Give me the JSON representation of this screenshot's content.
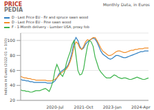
{
  "chart_data": {
    "type": "line",
    "title": "Monthly Data, in Euros",
    "annotations": [
      "PRICE",
      "PEDIA"
    ],
    "y_label": "Indices in Euros (2022-01 = 100)",
    "categories": [
      null,
      null,
      null,
      null,
      null,
      null,
      null,
      null,
      null,
      null,
      null,
      null,
      null,
      null,
      null,
      null,
      null,
      null,
      "2020-Jul",
      null,
      null,
      null,
      null,
      null,
      null,
      null,
      null,
      null,
      null,
      null,
      null,
      null,
      null,
      "2021-Oct",
      null,
      null,
      null,
      null,
      null,
      null,
      null,
      null,
      null,
      null,
      null,
      null,
      null,
      null,
      "2023-Jan",
      null,
      null,
      null,
      null,
      null,
      null,
      null,
      null,
      null,
      null,
      null,
      null,
      null,
      null,
      "2024-Apr",
      null,
      null,
      null,
      null
    ],
    "series": [
      {
        "name": "D - Last Price EU - Fir and spruce sawn wood",
        "color": "#2f7fc1",
        "values": [
          48,
          47,
          47,
          46,
          46,
          45,
          45,
          44,
          44,
          44,
          44,
          44,
          44,
          44,
          43,
          43,
          43,
          44,
          46,
          50,
          55,
          58,
          60,
          62,
          64,
          68,
          75,
          85,
          98,
          104,
          100,
          92,
          88,
          90,
          95,
          98,
          100,
          102,
          103,
          102,
          98,
          92,
          86,
          82,
          80,
          78,
          76,
          75,
          76,
          78,
          80,
          80,
          79,
          78,
          77,
          77,
          78,
          79,
          80,
          81,
          82,
          83,
          84,
          85,
          85,
          86,
          86,
          86
        ]
      },
      {
        "name": "D - Last Price EU - Pine sawn wood",
        "color": "#f28e2b",
        "values": [
          52,
          51,
          50,
          50,
          49,
          49,
          48,
          48,
          47,
          47,
          47,
          47,
          47,
          47,
          46,
          46,
          46,
          47,
          48,
          50,
          53,
          56,
          58,
          60,
          62,
          66,
          72,
          80,
          92,
          98,
          96,
          90,
          88,
          92,
          98,
          101,
          100,
          102,
          104,
          104,
          100,
          95,
          90,
          86,
          84,
          82,
          80,
          80,
          81,
          83,
          85,
          86,
          86,
          85,
          84,
          84,
          85,
          86,
          87,
          87,
          88,
          88,
          89,
          89,
          89,
          90,
          90,
          90
        ]
      },
      {
        "name": "F - 1-Month delivery - Lumber USA, proxy fob",
        "color": "#3cb44b",
        "values": [
          34,
          33,
          33,
          32,
          32,
          31,
          31,
          32,
          33,
          33,
          33,
          34,
          35,
          36,
          34,
          32,
          38,
          46,
          60,
          68,
          62,
          55,
          52,
          58,
          70,
          78,
          85,
          95,
          100,
          80,
          60,
          54,
          55,
          62,
          78,
          92,
          100,
          98,
          92,
          78,
          70,
          62,
          58,
          55,
          52,
          50,
          50,
          50,
          52,
          54,
          53,
          51,
          50,
          49,
          50,
          50,
          49,
          48,
          48,
          49,
          50,
          51,
          50,
          49,
          48,
          48,
          49,
          50
        ]
      }
    ],
    "ylim": [
      20,
      110
    ],
    "yticks": [
      20,
      40,
      60,
      80,
      100
    ],
    "grid": true
  }
}
